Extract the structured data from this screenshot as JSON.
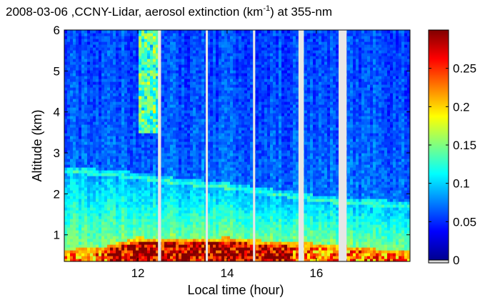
{
  "chart_data": {
    "type": "heatmap",
    "title_main": "2008-03-06 ,CCNY-Lidar, aerosol extinction (km",
    "title_sup": "-1",
    "title_tail": ") at 355-nm",
    "xlabel": "Local time (hour)",
    "ylabel": "Altitude (km)",
    "xlim": [
      10.35,
      18.1
    ],
    "ylim": [
      0.35,
      6.0
    ],
    "xticks": [
      12,
      14,
      16
    ],
    "yticks": [
      1,
      2,
      3,
      4,
      5,
      6
    ],
    "colorbar": {
      "range": [
        0,
        0.3
      ],
      "ticks": [
        0,
        0.05,
        0.1,
        0.15,
        0.2,
        0.25
      ],
      "tick_labels": [
        "0",
        "0.05",
        "0.1",
        "0.15",
        "0.2",
        "0.25"
      ],
      "colormap": "jet"
    },
    "data_gaps_hours": [
      [
        12.45,
        12.52
      ],
      [
        13.52,
        13.57
      ],
      [
        14.58,
        14.63
      ],
      [
        15.6,
        15.72
      ],
      [
        16.5,
        16.68
      ]
    ],
    "features": [
      {
        "label": "aerosol layer top (km)",
        "x": [
          10.4,
          12.0,
          13.0,
          14.0,
          15.0,
          16.0,
          17.0,
          18.0
        ],
        "y": [
          2.6,
          2.45,
          2.3,
          2.2,
          2.05,
          1.9,
          1.8,
          1.75
        ]
      },
      {
        "label": "near-surface high extinction top (km)",
        "x": [
          10.4,
          11.2,
          12.0,
          13.0,
          14.0,
          15.0,
          16.0,
          17.0,
          18.0
        ],
        "y": [
          0.55,
          0.6,
          0.85,
          0.8,
          0.85,
          0.75,
          0.7,
          0.6,
          0.5
        ]
      }
    ]
  }
}
